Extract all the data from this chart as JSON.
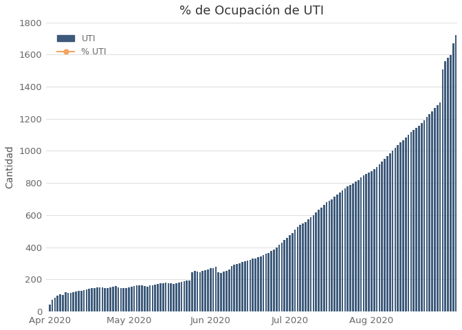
{
  "title": "% de Ocupación de UTI",
  "ylabel": "Cantidad",
  "bar_color": "#3d5a7a",
  "line_color": "#f4a460",
  "background_color": "#ffffff",
  "grid_color": "#e0e0e0",
  "legend_labels": [
    "UTI",
    "% UTI"
  ],
  "ylim": [
    0,
    1800
  ],
  "yticks": [
    0,
    200,
    400,
    600,
    800,
    1000,
    1200,
    1400,
    1600,
    1800
  ],
  "uti_values": [
    42,
    72,
    88,
    98,
    108,
    105,
    120,
    118,
    115,
    120,
    125,
    128,
    130,
    132,
    138,
    140,
    145,
    148,
    150,
    150,
    152,
    148,
    145,
    150,
    155,
    158,
    152,
    148,
    145,
    148,
    150,
    155,
    160,
    162,
    165,
    162,
    158,
    155,
    162,
    165,
    168,
    172,
    175,
    178,
    180,
    178,
    175,
    172,
    178,
    180,
    185,
    190,
    192,
    195,
    245,
    255,
    248,
    245,
    252,
    258,
    262,
    268,
    272,
    278,
    245,
    242,
    248,
    252,
    260,
    285,
    290,
    295,
    302,
    308,
    315,
    318,
    322,
    328,
    332,
    338,
    345,
    352,
    358,
    365,
    375,
    385,
    398,
    415,
    428,
    445,
    460,
    475,
    490,
    508,
    525,
    538,
    548,
    558,
    572,
    585,
    600,
    615,
    632,
    648,
    665,
    680,
    690,
    700,
    715,
    728,
    740,
    752,
    768,
    778,
    790,
    798,
    808,
    820,
    835,
    848,
    858,
    865,
    875,
    885,
    900,
    918,
    935,
    950,
    968,
    985,
    1002,
    1020,
    1035,
    1052,
    1068,
    1085,
    1102,
    1118,
    1132,
    1145,
    1158,
    1175,
    1192,
    1210,
    1228,
    1248,
    1268,
    1285,
    1302,
    1505,
    1558,
    1578,
    1598,
    1668,
    1720
  ],
  "x_tick_positions": [
    0,
    30,
    61,
    91,
    122
  ],
  "x_tick_labels": [
    "Apr 2020",
    "May 2020",
    "Jun 2020",
    "Jul 2020",
    "Aug 2020"
  ],
  "figsize": [
    6.72,
    4.8
  ],
  "dpi": 100
}
